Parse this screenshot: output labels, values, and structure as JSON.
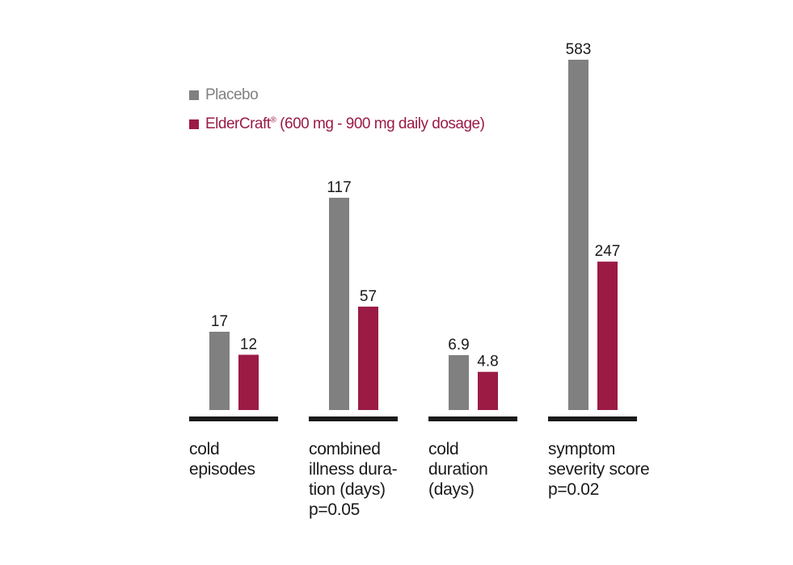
{
  "legend": {
    "placebo": "Placebo",
    "treatment_name": "ElderCraft",
    "treatment_mark": "®",
    "treatment_rest": " (600 mg - 900 mg daily dosage)"
  },
  "colors": {
    "placebo": "#808080",
    "treatment": "#9b1b45",
    "baseline": "#1a1a1a",
    "text": "#1a1a1a"
  },
  "chart_data": {
    "type": "bar",
    "note_scale": "each category group is scaled independently",
    "series": [
      {
        "name": "Placebo",
        "color": "#808080"
      },
      {
        "name": "ElderCraft® (600 mg - 900 mg daily dosage)",
        "color": "#9b1b45"
      }
    ],
    "groups": [
      {
        "label_lines": [
          "cold",
          "episodes"
        ],
        "values": [
          17,
          12
        ],
        "value_labels": [
          "17",
          "12"
        ]
      },
      {
        "label_lines": [
          "combined",
          "illness dura-",
          "tion (days)",
          "p=0.05"
        ],
        "values": [
          117,
          57
        ],
        "value_labels": [
          "117",
          "57"
        ]
      },
      {
        "label_lines": [
          "cold",
          "duration",
          "(days)"
        ],
        "values": [
          6.9,
          4.8
        ],
        "value_labels": [
          "6.9",
          "4.8"
        ]
      },
      {
        "label_lines": [
          "symptom",
          "severity score",
          "p=0.02"
        ],
        "values": [
          583,
          247
        ],
        "value_labels": [
          "583",
          "247"
        ]
      }
    ]
  }
}
